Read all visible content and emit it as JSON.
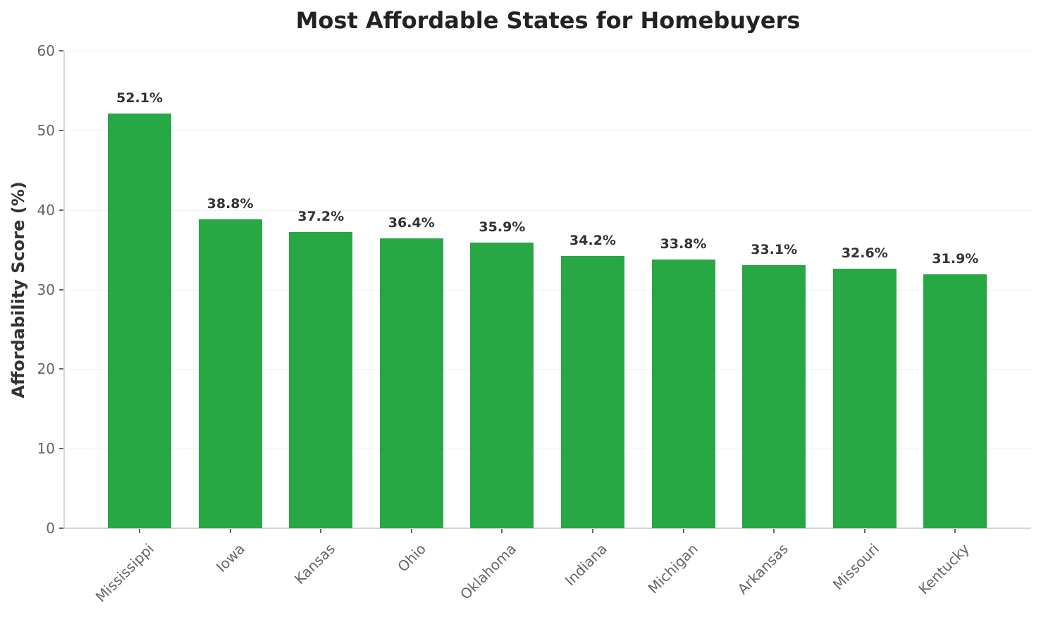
{
  "chart_data": {
    "type": "bar",
    "title": "Most Affordable States for Homebuyers",
    "xlabel": "",
    "ylabel": "Affordability Score (%)",
    "ylim": [
      0,
      60
    ],
    "yticks": [
      0,
      10,
      20,
      30,
      40,
      50,
      60
    ],
    "grid": true,
    "categories": [
      "Mississippi",
      "Iowa",
      "Kansas",
      "Ohio",
      "Oklahoma",
      "Indiana",
      "Michigan",
      "Arkansas",
      "Missouri",
      "Kentucky"
    ],
    "values": [
      52.1,
      38.8,
      37.2,
      36.4,
      35.9,
      34.2,
      33.8,
      33.1,
      32.6,
      31.9
    ],
    "data_labels": [
      "52.1%",
      "38.8%",
      "37.2%",
      "36.4%",
      "35.9%",
      "34.2%",
      "33.8%",
      "33.1%",
      "32.6%",
      "31.9%"
    ],
    "bar_color": "#28a745",
    "legend": null
  }
}
